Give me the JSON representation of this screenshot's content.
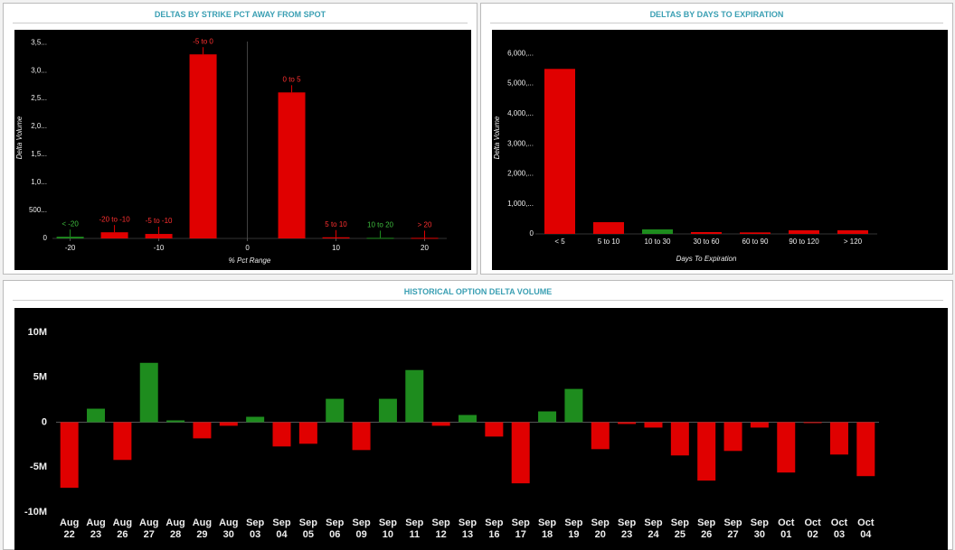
{
  "chart_data": [
    {
      "type": "bar",
      "title": "DELTAS BY STRIKE PCT AWAY FROM SPOT",
      "x_label": "% Pct Range",
      "y_label": "Delta Volume",
      "categories": [
        "< -20",
        "-20 to -10",
        "-5 to -10",
        "-5 to 0",
        "0 to 5",
        "5 to 10",
        "10 to 20",
        "> 20"
      ],
      "x": [
        -20,
        -15,
        -10,
        -5,
        5,
        10,
        15,
        20
      ],
      "values": [
        30000,
        110000,
        80000,
        3290000,
        2610000,
        20000,
        10000,
        10000
      ],
      "colors": [
        "#1e8c1e",
        "#e00000",
        "#e00000",
        "#e00000",
        "#e00000",
        "#e00000",
        "#1e8c1e",
        "#e00000"
      ],
      "xlim": [
        -22,
        22.5
      ],
      "xticks": [
        -20,
        -10,
        0,
        10,
        20
      ],
      "ylim": [
        0,
        3600000
      ],
      "yticks": [
        0,
        {
          "value": 500000,
          "label": "500..."
        },
        {
          "value": 1000000,
          "label": "1,0..."
        },
        {
          "value": 1500000,
          "label": "1,5..."
        },
        {
          "value": 2000000,
          "label": "2,0..."
        },
        {
          "value": 2500000,
          "label": "2,5..."
        },
        {
          "value": 3000000,
          "label": "3,0..."
        },
        {
          "value": 3500000,
          "label": "3,5..."
        }
      ]
    },
    {
      "type": "bar",
      "title": "DELTAS BY DAYS TO EXPIRATION",
      "x_label": "Days To Expiration",
      "y_label": "Delta Volume",
      "categories": [
        "< 5",
        "5 to 10",
        "10 to 30",
        "30 to 60",
        "60 to 90",
        "90 to 120",
        "> 120"
      ],
      "values": [
        5490000,
        390000,
        150000,
        60000,
        50000,
        120000,
        120000
      ],
      "colors": [
        "#e00000",
        "#e00000",
        "#1e8c1e",
        "#e00000",
        "#e00000",
        "#e00000",
        "#e00000"
      ],
      "ylim": [
        0,
        6400000
      ],
      "yticks": [
        0,
        {
          "value": 1000000,
          "label": "1,000,..."
        },
        {
          "value": 2000000,
          "label": "2,000,..."
        },
        {
          "value": 3000000,
          "label": "3,000,..."
        },
        {
          "value": 4000000,
          "label": "4,000,..."
        },
        {
          "value": 5000000,
          "label": "5,000,..."
        },
        {
          "value": 6000000,
          "label": "6,000,..."
        }
      ]
    },
    {
      "type": "bar",
      "title": "HISTORICAL OPTION DELTA VOLUME",
      "categories": [
        "Aug 22",
        "Aug 23",
        "Aug 26",
        "Aug 27",
        "Aug 28",
        "Aug 29",
        "Aug 30",
        "Sep 03",
        "Sep 04",
        "Sep 05",
        "Sep 06",
        "Sep 09",
        "Sep 10",
        "Sep 11",
        "Sep 12",
        "Sep 13",
        "Sep 16",
        "Sep 17",
        "Sep 18",
        "Sep 19",
        "Sep 20",
        "Sep 23",
        "Sep 24",
        "Sep 25",
        "Sep 26",
        "Sep 27",
        "Sep 30",
        "Oct 01",
        "Oct 02",
        "Oct 03",
        "Oct 04"
      ],
      "values": [
        -7300000,
        1500000,
        -4200000,
        6600000,
        200000,
        -1800000,
        -400000,
        600000,
        -2700000,
        -2400000,
        2600000,
        -3100000,
        2600000,
        5800000,
        -400000,
        800000,
        -1600000,
        -6800000,
        1200000,
        3700000,
        -3000000,
        -200000,
        -600000,
        -3700000,
        -6500000,
        -3200000,
        -600000,
        -5600000,
        -100000,
        -3600000,
        -6000000
      ],
      "positive_color": "#1e8c1e",
      "negative_color": "#e00000",
      "ylim": [
        -10300000,
        11800000
      ],
      "yticks": [
        {
          "value": -10000000,
          "label": "-10M"
        },
        {
          "value": -5000000,
          "label": "-5M"
        },
        0,
        {
          "value": 5000000,
          "label": "5M"
        },
        {
          "value": 10000000,
          "label": "10M"
        }
      ]
    }
  ]
}
